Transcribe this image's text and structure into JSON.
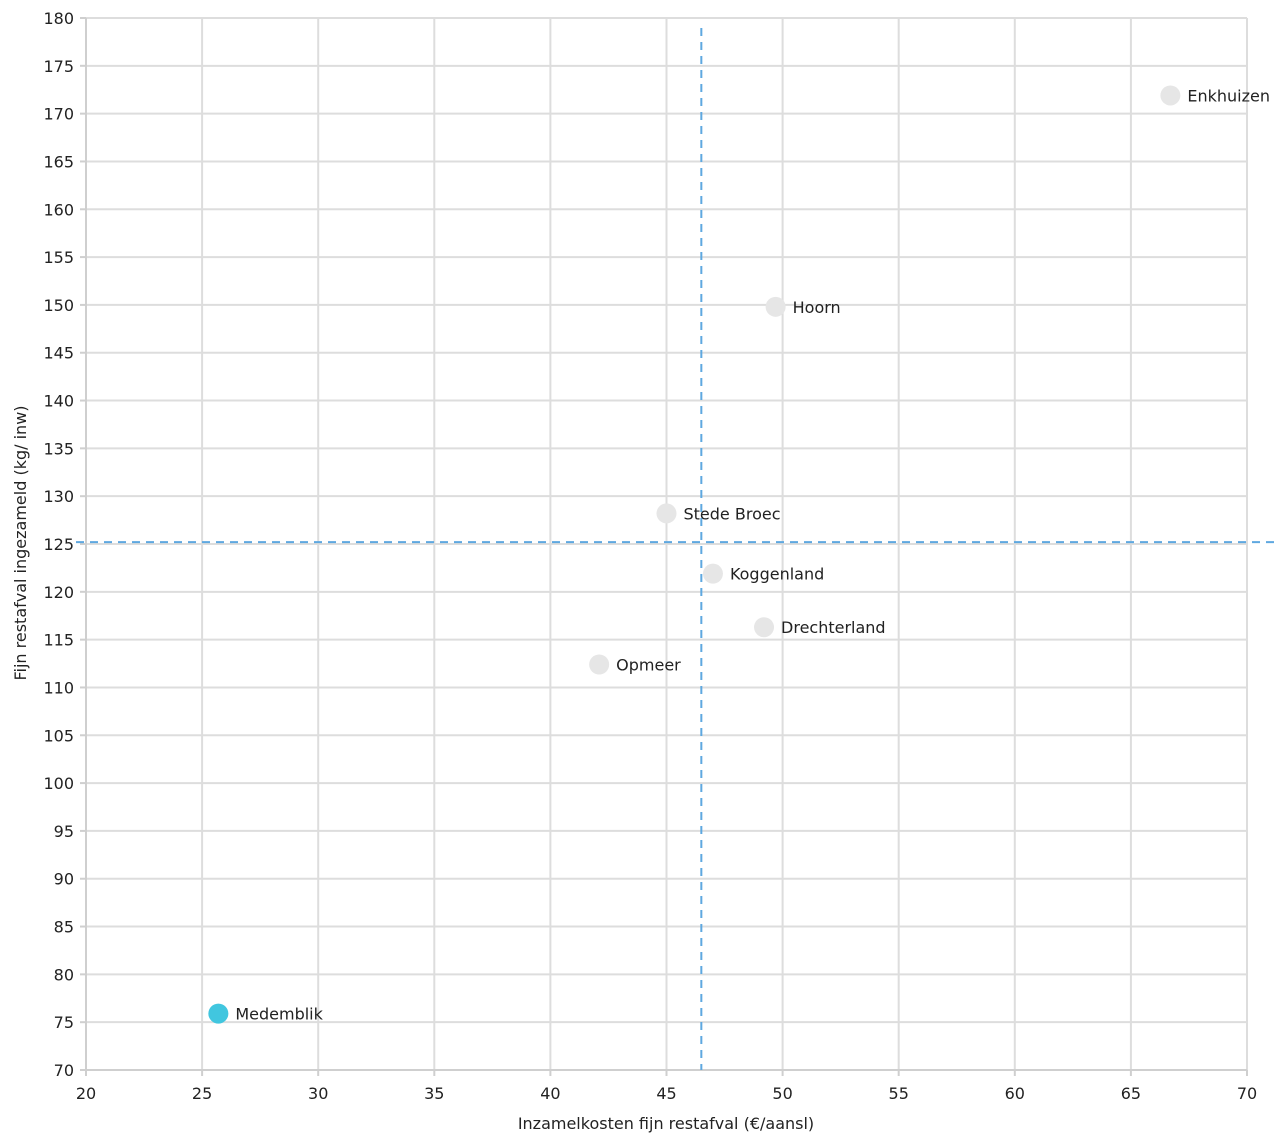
{
  "chart_data": {
    "type": "scatter",
    "title": "",
    "xlabel": "Inzamelkosten fijn restafval (€/aansl)",
    "ylabel": "Fijn restafval ingezameld (kg/ inw)",
    "xlim": [
      20,
      70
    ],
    "ylim": [
      70,
      180
    ],
    "x_ticks": [
      20,
      25,
      30,
      35,
      40,
      45,
      50,
      55,
      60,
      65,
      70
    ],
    "y_ticks": [
      70,
      75,
      80,
      85,
      90,
      95,
      100,
      105,
      110,
      115,
      120,
      125,
      130,
      135,
      140,
      145,
      150,
      155,
      160,
      165,
      170,
      175,
      180
    ],
    "grid": true,
    "reference_lines": {
      "x": 46.5,
      "y": 125.2
    },
    "points": [
      {
        "label": "Medemblik",
        "x": 25.7,
        "y": 75.9,
        "highlight": true
      },
      {
        "label": "Enkhuizen",
        "x": 66.7,
        "y": 171.9,
        "highlight": false
      },
      {
        "label": "Hoorn",
        "x": 49.7,
        "y": 149.8,
        "highlight": false
      },
      {
        "label": "Stede Broec",
        "x": 45.0,
        "y": 128.2,
        "highlight": false
      },
      {
        "label": "Koggenland",
        "x": 47.0,
        "y": 121.9,
        "highlight": false
      },
      {
        "label": "Drechterland",
        "x": 49.2,
        "y": 116.3,
        "highlight": false
      },
      {
        "label": "Opmeer",
        "x": 42.1,
        "y": 112.4,
        "highlight": false
      }
    ],
    "colors": {
      "highlight": "#41c6df",
      "default_point": "#e6e6e6",
      "reference_line": "#5ea8e0",
      "grid": "#dddddd"
    }
  }
}
